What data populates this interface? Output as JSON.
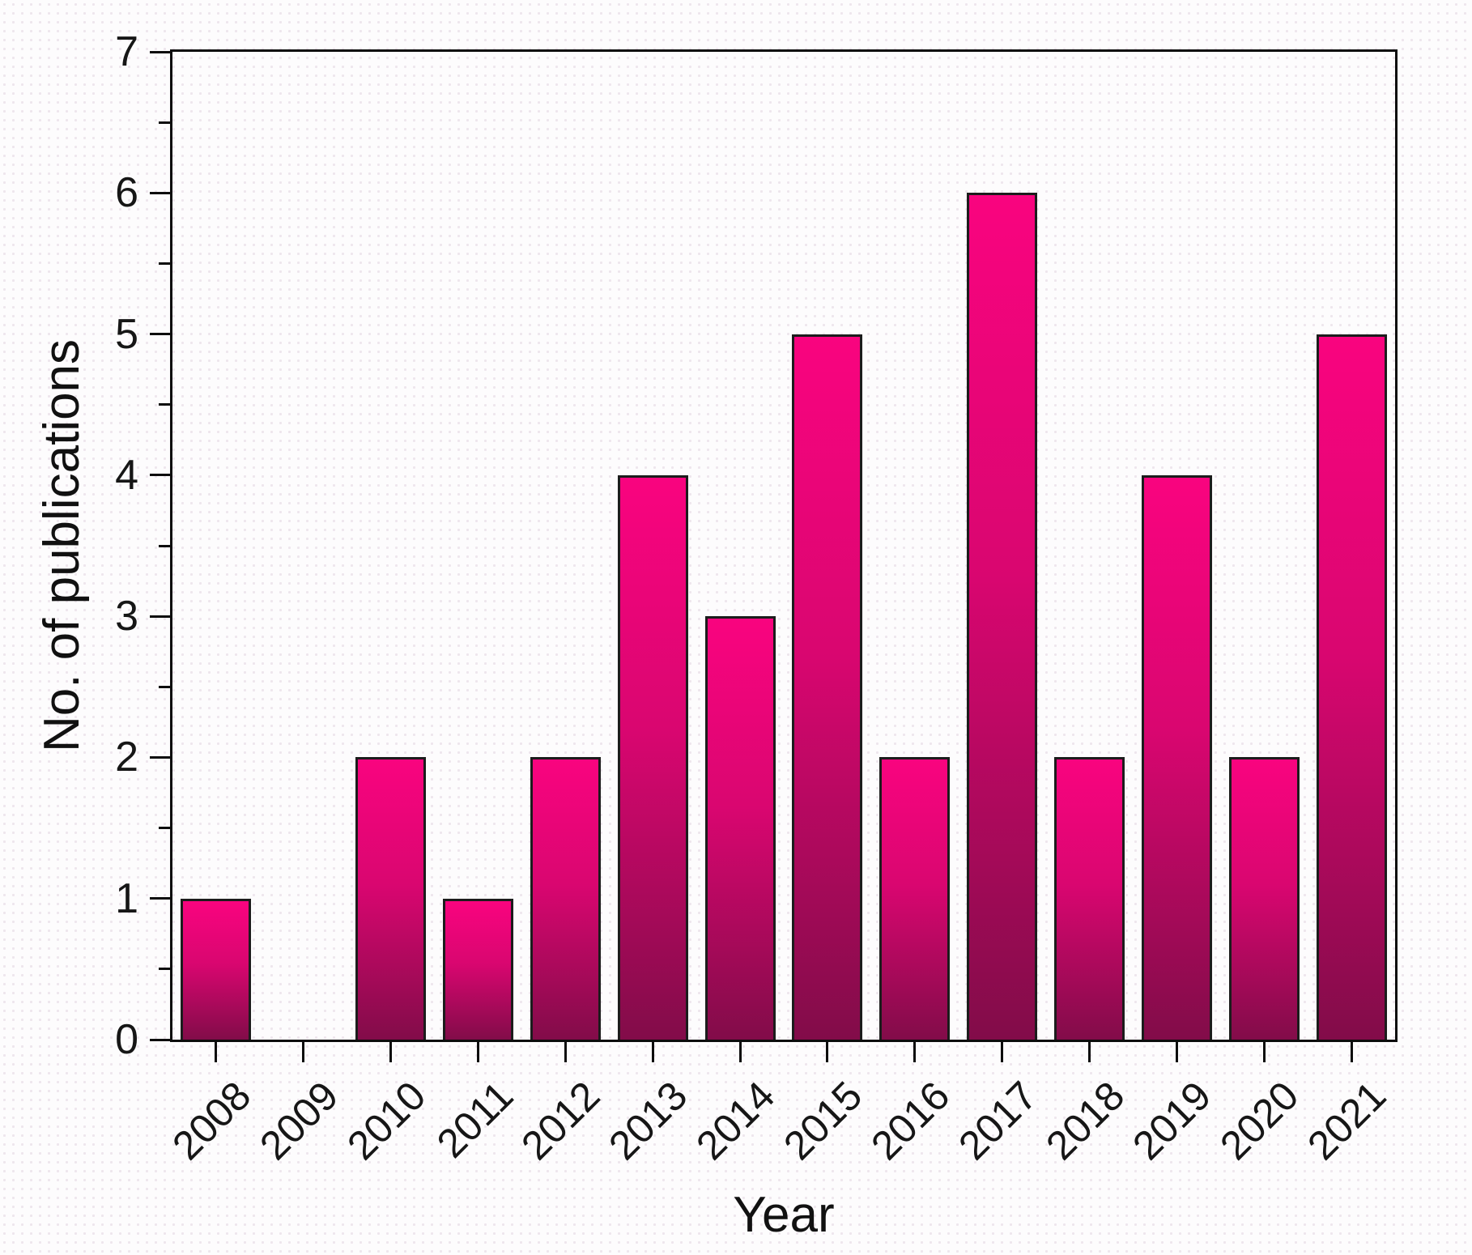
{
  "chart_data": {
    "type": "bar",
    "title": "",
    "xlabel": "Year",
    "ylabel": "No. of publications",
    "categories": [
      "2008",
      "2009",
      "2010",
      "2011",
      "2012",
      "2013",
      "2014",
      "2015",
      "2016",
      "2017",
      "2018",
      "2019",
      "2020",
      "2021"
    ],
    "values": [
      1,
      0,
      2,
      1,
      2,
      4,
      3,
      5,
      2,
      6,
      2,
      4,
      2,
      5
    ],
    "ylim": [
      0,
      7
    ],
    "y_major_ticks": [
      0,
      1,
      2,
      3,
      4,
      5,
      6,
      7
    ],
    "y_minor_step": 0.5,
    "grid": false,
    "legend": false,
    "layout_hints": {
      "bar_gradient_top": "#f9047f",
      "bar_gradient_mid": "#d90670",
      "bar_gradient_bottom": "#820c49",
      "bar_border_color": "#1c1c1c",
      "frame_color": "#0d0d0d",
      "text_color": "#161616",
      "background": "#fdfcfd"
    }
  }
}
